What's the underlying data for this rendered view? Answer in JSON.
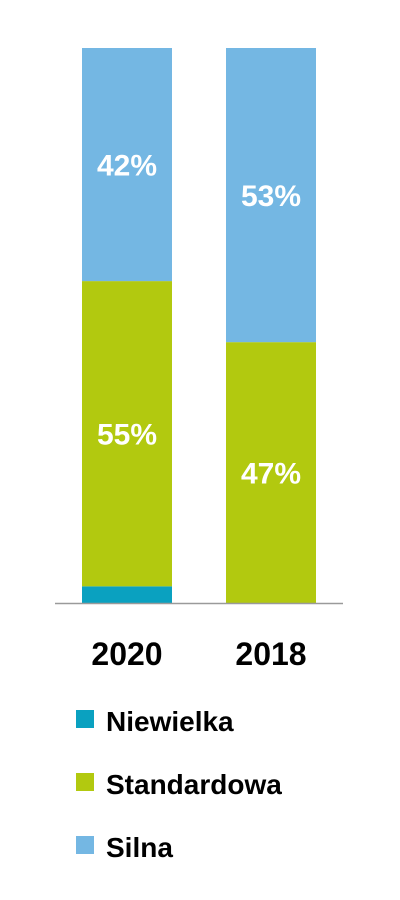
{
  "chart_data": {
    "type": "bar",
    "stacked": true,
    "percent": true,
    "categories": [
      "2020",
      "2018"
    ],
    "series": [
      {
        "name": "Niewielka",
        "color": "#0aa1c0",
        "values": [
          3,
          0
        ],
        "labels": [
          "",
          ""
        ]
      },
      {
        "name": "Standardowa",
        "color": "#b2c90f",
        "values": [
          55,
          47
        ],
        "labels": [
          "55%",
          "47%"
        ]
      },
      {
        "name": "Silna",
        "color": "#74b7e3",
        "values": [
          42,
          53
        ],
        "labels": [
          "42%",
          "53%"
        ]
      }
    ],
    "ylim": [
      0,
      100
    ],
    "grid": false,
    "legend": {
      "placement": "bottom",
      "order": [
        "Niewielka",
        "Standardowa",
        "Silna"
      ]
    },
    "axis_color": "#9a9a9a"
  }
}
